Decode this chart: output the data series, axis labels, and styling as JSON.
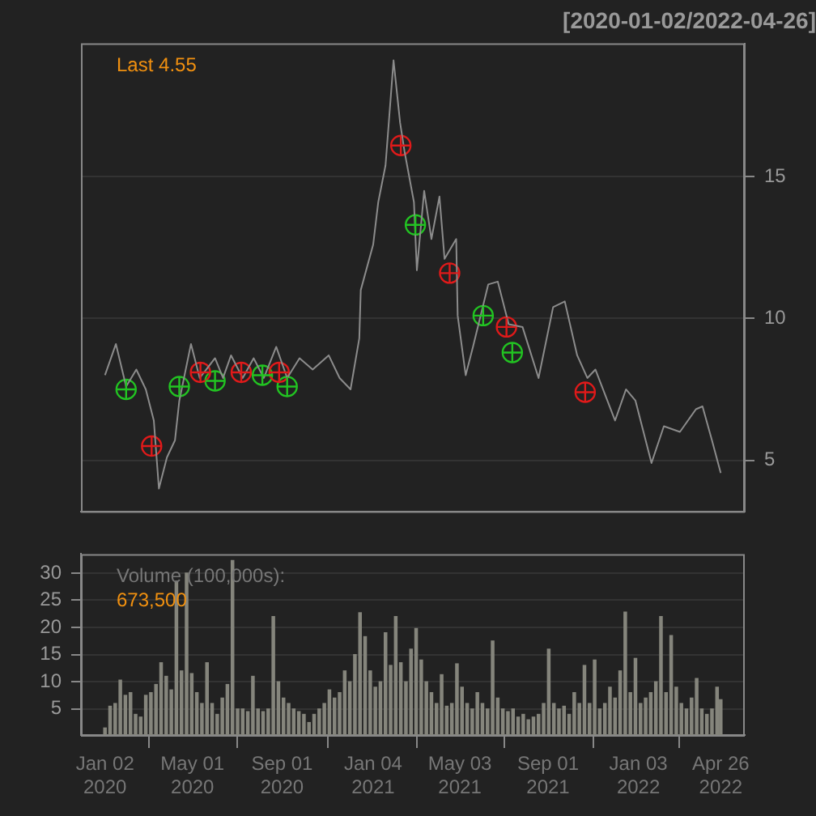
{
  "chart_data": [
    {
      "type": "line",
      "title": "[2020-01-02/2022-04-26]",
      "xlim": [
        "2019-11-30",
        "2022-05-29"
      ],
      "ylim": [
        3.2,
        19.7
      ],
      "yticks": [
        5,
        10,
        15
      ],
      "grid": "y",
      "tick_labels": "y",
      "annotations": [
        "Last 4.55"
      ],
      "series": [
        {
          "color": "#8c8c8c",
          "x": [
            "2020-01-02",
            "2020-01-17",
            "2020-01-31",
            "2020-02-14",
            "2020-02-27",
            "2020-03-09",
            "2020-03-16",
            "2020-03-27",
            "2020-04-07",
            "2020-04-13",
            "2020-04-29",
            "2020-05-11",
            "2020-06-01",
            "2020-06-12",
            "2020-06-23",
            "2020-07-09",
            "2020-07-24",
            "2020-08-07",
            "2020-08-24",
            "2020-09-08",
            "2020-09-25",
            "2020-10-13",
            "2020-11-04",
            "2020-11-19",
            "2020-12-04",
            "2020-12-16",
            "2020-12-18",
            "2021-01-04",
            "2021-01-11",
            "2021-01-21",
            "2021-02-01",
            "2021-02-10",
            "2021-02-16",
            "2021-03-01",
            "2021-03-05",
            "2021-03-15",
            "2021-03-25",
            "2021-04-05",
            "2021-04-12",
            "2021-04-28",
            "2021-04-30",
            "2021-05-11",
            "2021-05-21",
            "2021-06-11",
            "2021-06-24",
            "2021-07-09",
            "2021-07-28",
            "2021-08-19",
            "2021-09-08",
            "2021-09-24",
            "2021-10-11",
            "2021-10-25",
            "2021-11-05",
            "2021-12-02",
            "2021-12-17",
            "2021-12-30",
            "2022-01-21",
            "2022-02-07",
            "2022-03-01",
            "2022-03-23",
            "2022-04-01",
            "2022-04-14",
            "2022-04-26"
          ],
          "values": [
            8.0,
            9.1,
            7.6,
            8.2,
            7.5,
            6.4,
            4.0,
            5.1,
            5.7,
            7.1,
            9.1,
            7.9,
            8.6,
            7.9,
            8.7,
            7.9,
            8.6,
            7.9,
            9.0,
            7.9,
            8.6,
            8.2,
            8.7,
            7.9,
            7.5,
            9.3,
            11.0,
            12.6,
            14.1,
            15.4,
            19.1,
            16.9,
            15.9,
            14.1,
            11.7,
            14.5,
            12.8,
            14.3,
            12.1,
            12.8,
            10.1,
            8.0,
            9.0,
            11.2,
            11.3,
            9.8,
            9.7,
            7.9,
            10.4,
            10.6,
            8.7,
            7.9,
            8.2,
            6.4,
            7.5,
            7.1,
            4.9,
            6.2,
            6.0,
            6.8,
            6.9,
            5.7,
            4.55
          ]
        },
        {
          "type": "scatter",
          "color": "#e01a1a",
          "marker": "circle",
          "x": [
            "2020-03-06",
            "2020-05-12",
            "2020-07-07",
            "2020-08-28",
            "2021-02-11",
            "2021-04-19",
            "2021-07-06",
            "2021-10-22"
          ],
          "values": [
            5.5,
            8.1,
            8.1,
            8.1,
            16.1,
            11.6,
            9.7,
            7.4
          ]
        },
        {
          "type": "scatter",
          "color": "#22c322",
          "marker": "circle",
          "x": [
            "2020-01-31",
            "2020-04-13",
            "2020-06-01",
            "2020-08-05",
            "2020-09-08",
            "2021-03-03",
            "2021-06-04",
            "2021-07-14"
          ],
          "values": [
            7.5,
            7.6,
            7.8,
            8.0,
            7.6,
            13.3,
            10.1,
            8.8
          ]
        }
      ]
    },
    {
      "type": "bar",
      "color": "#85857c",
      "xlim": [
        "2019-11-30",
        "2022-05-29"
      ],
      "xticks": [
        {
          "value": "2020-01-02",
          "label": "Jan 02 2020"
        },
        {
          "value": "2020-05-01",
          "label": "May 01 2020"
        },
        {
          "value": "2020-09-01",
          "label": "Sep 01 2020"
        },
        {
          "value": "2021-01-04",
          "label": "Jan 04 2021"
        },
        {
          "value": "2021-05-03",
          "label": "May 03 2021"
        },
        {
          "value": "2021-09-01",
          "label": "Sep 01 2021"
        },
        {
          "value": "2022-01-03",
          "label": "Jan 03 2022"
        },
        {
          "value": "2022-04-26",
          "label": "Apr 26 2022"
        }
      ],
      "ylim": [
        0.2,
        33.5
      ],
      "yticks": [
        5,
        10,
        15,
        20,
        25,
        30
      ],
      "grid": "y",
      "annotations": [
        "Volume (100,000s):",
        "673,500"
      ],
      "x": [
        "2020-01-02",
        "2020-01-09",
        "2020-01-16",
        "2020-01-23",
        "2020-01-30",
        "2020-02-06",
        "2020-02-13",
        "2020-02-20",
        "2020-02-27",
        "2020-03-05",
        "2020-03-12",
        "2020-03-19",
        "2020-03-26",
        "2020-04-02",
        "2020-04-09",
        "2020-04-16",
        "2020-04-23",
        "2020-04-30",
        "2020-05-07",
        "2020-05-14",
        "2020-05-21",
        "2020-05-28",
        "2020-06-04",
        "2020-06-11",
        "2020-06-18",
        "2020-06-25",
        "2020-07-02",
        "2020-07-09",
        "2020-07-16",
        "2020-07-23",
        "2020-07-30",
        "2020-08-06",
        "2020-08-13",
        "2020-08-20",
        "2020-08-27",
        "2020-09-03",
        "2020-09-10",
        "2020-09-17",
        "2020-09-24",
        "2020-10-01",
        "2020-10-08",
        "2020-10-15",
        "2020-10-22",
        "2020-10-29",
        "2020-11-05",
        "2020-11-12",
        "2020-11-19",
        "2020-11-26",
        "2020-12-03",
        "2020-12-10",
        "2020-12-17",
        "2020-12-24",
        "2020-12-31",
        "2021-01-07",
        "2021-01-14",
        "2021-01-21",
        "2021-01-28",
        "2021-02-04",
        "2021-02-11",
        "2021-02-18",
        "2021-02-25",
        "2021-03-04",
        "2021-03-11",
        "2021-03-18",
        "2021-03-25",
        "2021-04-01",
        "2021-04-08",
        "2021-04-15",
        "2021-04-22",
        "2021-04-29",
        "2021-05-06",
        "2021-05-13",
        "2021-05-20",
        "2021-05-27",
        "2021-06-03",
        "2021-06-10",
        "2021-06-17",
        "2021-06-24",
        "2021-07-01",
        "2021-07-08",
        "2021-07-15",
        "2021-07-22",
        "2021-07-29",
        "2021-08-05",
        "2021-08-12",
        "2021-08-19",
        "2021-08-26",
        "2021-09-02",
        "2021-09-09",
        "2021-09-16",
        "2021-09-23",
        "2021-09-30",
        "2021-10-07",
        "2021-10-14",
        "2021-10-21",
        "2021-10-28",
        "2021-11-04",
        "2021-11-11",
        "2021-11-18",
        "2021-11-25",
        "2021-12-02",
        "2021-12-09",
        "2021-12-16",
        "2021-12-23",
        "2021-12-30",
        "2022-01-06",
        "2022-01-13",
        "2022-01-20",
        "2022-01-27",
        "2022-02-03",
        "2022-02-10",
        "2022-02-17",
        "2022-02-24",
        "2022-03-03",
        "2022-03-10",
        "2022-03-17",
        "2022-03-24",
        "2022-03-31",
        "2022-04-07",
        "2022-04-14",
        "2022-04-21",
        "2022-04-26"
      ],
      "values": [
        1.5,
        5.5,
        6,
        10.3,
        7.5,
        8,
        4,
        3.5,
        7.5,
        8,
        9.5,
        13.5,
        11,
        8.5,
        28.5,
        12,
        30,
        11.5,
        8,
        6,
        13.5,
        6,
        4,
        7,
        9.5,
        32.3,
        5,
        5,
        4.5,
        11,
        5,
        4.5,
        5,
        22,
        10,
        7,
        6,
        5,
        4.5,
        4,
        2.5,
        4,
        5,
        6,
        8.5,
        7,
        8,
        12,
        10,
        15,
        22.7,
        18.3,
        12,
        9,
        10,
        19,
        13,
        22,
        13.5,
        10,
        16,
        19.8,
        14,
        10,
        8,
        6,
        11.3,
        5.5,
        6,
        13.3,
        9,
        6,
        5,
        8,
        6,
        5,
        17.5,
        7,
        5,
        4.5,
        5,
        3.5,
        4,
        3,
        3.5,
        4,
        6,
        16,
        6,
        5,
        5.5,
        4,
        8,
        6,
        13,
        6,
        14,
        5,
        6,
        9,
        7,
        12,
        22.8,
        8,
        14.3,
        6,
        7,
        8,
        10,
        22,
        8,
        18.5,
        9,
        6,
        5,
        7,
        10.6,
        5,
        4,
        5,
        9,
        6.7
      ]
    }
  ]
}
